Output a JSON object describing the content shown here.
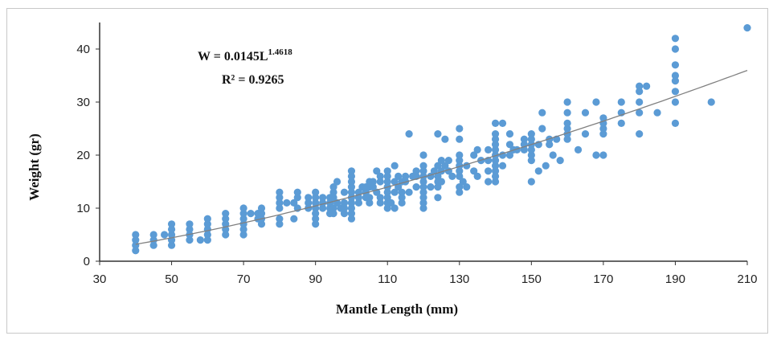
{
  "chart_data": {
    "type": "scatter",
    "xlabel": "Mantle Length (mm)",
    "ylabel": "Weight (gr)",
    "xlim": [
      30,
      210
    ],
    "ylim": [
      0,
      45
    ],
    "xticks": [
      30,
      50,
      70,
      90,
      110,
      130,
      150,
      170,
      190,
      210
    ],
    "yticks": [
      0,
      10,
      20,
      30,
      40
    ],
    "grid": false,
    "equation": {
      "base": "W = 0.0145L",
      "exponent": "1.4618",
      "r2": "R² = 0.9265"
    },
    "trendline": {
      "type": "power",
      "a": 0.0145,
      "b": 1.4618,
      "x_range": [
        40,
        210
      ]
    },
    "point_color": "#5b9bd5",
    "trend_color": "#808080",
    "series": [
      {
        "points": [
          [
            40,
            2
          ],
          [
            40,
            3
          ],
          [
            40,
            4
          ],
          [
            40,
            5
          ],
          [
            45,
            3
          ],
          [
            45,
            4
          ],
          [
            45,
            5
          ],
          [
            48,
            5
          ],
          [
            50,
            3
          ],
          [
            50,
            4
          ],
          [
            50,
            5
          ],
          [
            50,
            6
          ],
          [
            50,
            7
          ],
          [
            55,
            4
          ],
          [
            55,
            5
          ],
          [
            55,
            6
          ],
          [
            55,
            7
          ],
          [
            58,
            4
          ],
          [
            60,
            4
          ],
          [
            60,
            5
          ],
          [
            60,
            6
          ],
          [
            60,
            7
          ],
          [
            60,
            8
          ],
          [
            65,
            5
          ],
          [
            65,
            6
          ],
          [
            65,
            7
          ],
          [
            65,
            8
          ],
          [
            65,
            9
          ],
          [
            70,
            5
          ],
          [
            70,
            6
          ],
          [
            70,
            7
          ],
          [
            70,
            8
          ],
          [
            70,
            9
          ],
          [
            70,
            10
          ],
          [
            72,
            9
          ],
          [
            74,
            8
          ],
          [
            74,
            9
          ],
          [
            75,
            7
          ],
          [
            75,
            8
          ],
          [
            75,
            9
          ],
          [
            75,
            10
          ],
          [
            80,
            7
          ],
          [
            80,
            8
          ],
          [
            80,
            10
          ],
          [
            80,
            11
          ],
          [
            80,
            12
          ],
          [
            80,
            13
          ],
          [
            82,
            11
          ],
          [
            84,
            8
          ],
          [
            84,
            11
          ],
          [
            85,
            10
          ],
          [
            85,
            12
          ],
          [
            85,
            13
          ],
          [
            88,
            10
          ],
          [
            88,
            11
          ],
          [
            88,
            12
          ],
          [
            90,
            7
          ],
          [
            90,
            8
          ],
          [
            90,
            9
          ],
          [
            90,
            10
          ],
          [
            90,
            11
          ],
          [
            90,
            12
          ],
          [
            90,
            13
          ],
          [
            92,
            10
          ],
          [
            92,
            11
          ],
          [
            92,
            12
          ],
          [
            94,
            9
          ],
          [
            94,
            10
          ],
          [
            94,
            11
          ],
          [
            94,
            12
          ],
          [
            95,
            9
          ],
          [
            95,
            10
          ],
          [
            95,
            12
          ],
          [
            95,
            13
          ],
          [
            95,
            14
          ],
          [
            96,
            11
          ],
          [
            96,
            15
          ],
          [
            97,
            10
          ],
          [
            98,
            9
          ],
          [
            98,
            10
          ],
          [
            98,
            11
          ],
          [
            98,
            13
          ],
          [
            100,
            8
          ],
          [
            100,
            9
          ],
          [
            100,
            10
          ],
          [
            100,
            11
          ],
          [
            100,
            12
          ],
          [
            100,
            13
          ],
          [
            100,
            14
          ],
          [
            100,
            15
          ],
          [
            100,
            16
          ],
          [
            100,
            17
          ],
          [
            102,
            11
          ],
          [
            102,
            12
          ],
          [
            102,
            13
          ],
          [
            103,
            14
          ],
          [
            104,
            12
          ],
          [
            104,
            13
          ],
          [
            104,
            14
          ],
          [
            105,
            11
          ],
          [
            105,
            12
          ],
          [
            105,
            14
          ],
          [
            105,
            15
          ],
          [
            106,
            14
          ],
          [
            106,
            15
          ],
          [
            107,
            13
          ],
          [
            107,
            17
          ],
          [
            108,
            11
          ],
          [
            108,
            12
          ],
          [
            108,
            15
          ],
          [
            108,
            16
          ],
          [
            110,
            10
          ],
          [
            110,
            11
          ],
          [
            110,
            12
          ],
          [
            110,
            13
          ],
          [
            110,
            14
          ],
          [
            110,
            15
          ],
          [
            110,
            16
          ],
          [
            110,
            17
          ],
          [
            111,
            11
          ],
          [
            112,
            10
          ],
          [
            112,
            13
          ],
          [
            112,
            15
          ],
          [
            112,
            18
          ],
          [
            113,
            14
          ],
          [
            113,
            16
          ],
          [
            114,
            11
          ],
          [
            114,
            12
          ],
          [
            114,
            13
          ],
          [
            114,
            15
          ],
          [
            115,
            15
          ],
          [
            115,
            16
          ],
          [
            116,
            13
          ],
          [
            116,
            24
          ],
          [
            117,
            16
          ],
          [
            118,
            14
          ],
          [
            118,
            16
          ],
          [
            118,
            17
          ],
          [
            120,
            10
          ],
          [
            120,
            11
          ],
          [
            120,
            12
          ],
          [
            120,
            13
          ],
          [
            120,
            14
          ],
          [
            120,
            15
          ],
          [
            120,
            16
          ],
          [
            120,
            17
          ],
          [
            120,
            18
          ],
          [
            120,
            20
          ],
          [
            122,
            14
          ],
          [
            122,
            16
          ],
          [
            123,
            17
          ],
          [
            124,
            12
          ],
          [
            124,
            14
          ],
          [
            124,
            15
          ],
          [
            124,
            16
          ],
          [
            124,
            18
          ],
          [
            124,
            24
          ],
          [
            125,
            15
          ],
          [
            125,
            17
          ],
          [
            125,
            19
          ],
          [
            126,
            18
          ],
          [
            126,
            23
          ],
          [
            127,
            17
          ],
          [
            127,
            19
          ],
          [
            128,
            16
          ],
          [
            130,
            13
          ],
          [
            130,
            14
          ],
          [
            130,
            16
          ],
          [
            130,
            17
          ],
          [
            130,
            18
          ],
          [
            130,
            19
          ],
          [
            130,
            20
          ],
          [
            130,
            23
          ],
          [
            130,
            25
          ],
          [
            131,
            15
          ],
          [
            132,
            14
          ],
          [
            132,
            18
          ],
          [
            134,
            17
          ],
          [
            134,
            20
          ],
          [
            135,
            16
          ],
          [
            135,
            21
          ],
          [
            136,
            19
          ],
          [
            138,
            15
          ],
          [
            138,
            17
          ],
          [
            138,
            19
          ],
          [
            138,
            21
          ],
          [
            140,
            15
          ],
          [
            140,
            16
          ],
          [
            140,
            17
          ],
          [
            140,
            18
          ],
          [
            140,
            19
          ],
          [
            140,
            20
          ],
          [
            140,
            21
          ],
          [
            140,
            22
          ],
          [
            140,
            23
          ],
          [
            140,
            24
          ],
          [
            140,
            26
          ],
          [
            142,
            18
          ],
          [
            142,
            20
          ],
          [
            142,
            26
          ],
          [
            144,
            20
          ],
          [
            144,
            22
          ],
          [
            144,
            24
          ],
          [
            145,
            21
          ],
          [
            146,
            21
          ],
          [
            148,
            21
          ],
          [
            148,
            22
          ],
          [
            148,
            23
          ],
          [
            150,
            15
          ],
          [
            150,
            19
          ],
          [
            150,
            20
          ],
          [
            150,
            21
          ],
          [
            150,
            22
          ],
          [
            150,
            23
          ],
          [
            150,
            24
          ],
          [
            152,
            17
          ],
          [
            152,
            22
          ],
          [
            153,
            28
          ],
          [
            153,
            25
          ],
          [
            154,
            18
          ],
          [
            155,
            22
          ],
          [
            155,
            23
          ],
          [
            156,
            20
          ],
          [
            157,
            23
          ],
          [
            158,
            19
          ],
          [
            160,
            23
          ],
          [
            160,
            24
          ],
          [
            160,
            25
          ],
          [
            160,
            26
          ],
          [
            160,
            28
          ],
          [
            160,
            30
          ],
          [
            163,
            21
          ],
          [
            165,
            24
          ],
          [
            165,
            28
          ],
          [
            168,
            20
          ],
          [
            168,
            30
          ],
          [
            170,
            20
          ],
          [
            170,
            24
          ],
          [
            170,
            25
          ],
          [
            170,
            26
          ],
          [
            170,
            27
          ],
          [
            175,
            26
          ],
          [
            175,
            28
          ],
          [
            175,
            30
          ],
          [
            180,
            24
          ],
          [
            180,
            28
          ],
          [
            180,
            30
          ],
          [
            180,
            32
          ],
          [
            180,
            33
          ],
          [
            182,
            33
          ],
          [
            185,
            28
          ],
          [
            190,
            26
          ],
          [
            190,
            30
          ],
          [
            190,
            32
          ],
          [
            190,
            34
          ],
          [
            190,
            35
          ],
          [
            190,
            37
          ],
          [
            190,
            40
          ],
          [
            190,
            42
          ],
          [
            200,
            30
          ],
          [
            210,
            44
          ]
        ]
      }
    ]
  }
}
